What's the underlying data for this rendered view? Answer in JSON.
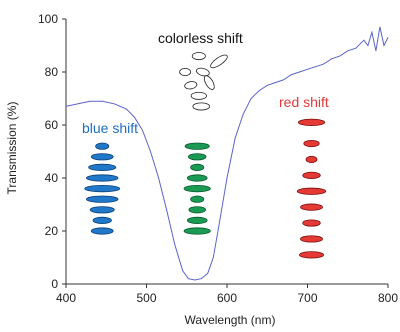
{
  "chart_data": {
    "type": "line",
    "xlabel": "Wavelength (nm)",
    "ylabel": "Transmission (%)",
    "xlim": [
      400,
      800
    ],
    "ylim": [
      0,
      100
    ],
    "x_ticks": [
      400,
      500,
      600,
      700,
      800
    ],
    "y_ticks": [
      0,
      20,
      40,
      60,
      80,
      100
    ],
    "grid": false,
    "series": [
      {
        "color": "#5b63c7",
        "x": [
          400,
          415,
          430,
          445,
          460,
          475,
          485,
          495,
          505,
          515,
          525,
          535,
          545,
          552,
          560,
          568,
          576,
          583,
          590,
          600,
          610,
          620,
          630,
          640,
          650,
          660,
          670,
          680,
          690,
          700,
          710,
          720,
          730,
          740,
          750,
          760,
          770,
          775,
          780,
          785,
          790,
          795,
          800
        ],
        "y": [
          67,
          68,
          69,
          69,
          68,
          66,
          63,
          58,
          50,
          40,
          28,
          15,
          5,
          2,
          1.5,
          2,
          4,
          10,
          22,
          40,
          55,
          64,
          70,
          73,
          75,
          76,
          77,
          79,
          80,
          81,
          82,
          83,
          85,
          86,
          88,
          89,
          92,
          90,
          95,
          88,
          97,
          90,
          93
        ]
      }
    ],
    "annotations": [
      {
        "text": "blue shift",
        "color": "#1f6fc0"
      },
      {
        "text": "colorless shift",
        "color": "#111111"
      },
      {
        "text": "red shift",
        "color": "#e03a3a"
      }
    ],
    "ellipse_groups": [
      {
        "name": "blue",
        "fill": "#1f78c8",
        "stroke": "#0d3f78",
        "x_center": 445,
        "items": [
          {
            "y": 52,
            "w": 0.3
          },
          {
            "y": 48,
            "w": 0.5
          },
          {
            "y": 44,
            "w": 0.62
          },
          {
            "y": 40,
            "w": 0.72
          },
          {
            "y": 36,
            "w": 0.8
          },
          {
            "y": 32,
            "w": 0.72
          },
          {
            "y": 28,
            "w": 0.55
          },
          {
            "y": 24,
            "w": 0.42
          },
          {
            "y": 20,
            "w": 0.5
          }
        ]
      },
      {
        "name": "green",
        "fill": "#1a9a52",
        "stroke": "#0b5a2e",
        "x_center": 563,
        "items": [
          {
            "y": 52,
            "w": 0.55
          },
          {
            "y": 48,
            "w": 0.4
          },
          {
            "y": 44,
            "w": 0.3
          },
          {
            "y": 40,
            "w": 0.45
          },
          {
            "y": 36,
            "w": 0.6
          },
          {
            "y": 32,
            "w": 0.3
          },
          {
            "y": 28,
            "w": 0.38
          },
          {
            "y": 24,
            "w": 0.45
          },
          {
            "y": 20,
            "w": 0.6
          }
        ]
      },
      {
        "name": "red",
        "fill": "#e53935",
        "stroke": "#7a1010",
        "x_center": 705,
        "items": [
          {
            "y": 61,
            "w": 0.6
          },
          {
            "y": 53,
            "w": 0.35
          },
          {
            "y": 47,
            "w": 0.25
          },
          {
            "y": 41,
            "w": 0.4
          },
          {
            "y": 35,
            "w": 0.65
          },
          {
            "y": 29,
            "w": 0.5
          },
          {
            "y": 23,
            "w": 0.4
          },
          {
            "y": 17,
            "w": 0.5
          },
          {
            "y": 11,
            "w": 0.55
          }
        ]
      }
    ],
    "outline_ellipses": [
      {
        "x": 565,
        "y": 86,
        "w": 0.3,
        "rot": 0
      },
      {
        "x": 590,
        "y": 84,
        "w": 0.45,
        "rot": -35
      },
      {
        "x": 548,
        "y": 80,
        "w": 0.25,
        "rot": 0
      },
      {
        "x": 570,
        "y": 80,
        "w": 0.3,
        "rot": 15
      },
      {
        "x": 578,
        "y": 76,
        "w": 0.35,
        "rot": 60
      },
      {
        "x": 555,
        "y": 75,
        "w": 0.28,
        "rot": -10
      },
      {
        "x": 565,
        "y": 71,
        "w": 0.35,
        "rot": 0
      },
      {
        "x": 568,
        "y": 67,
        "w": 0.38,
        "rot": 0
      }
    ]
  }
}
